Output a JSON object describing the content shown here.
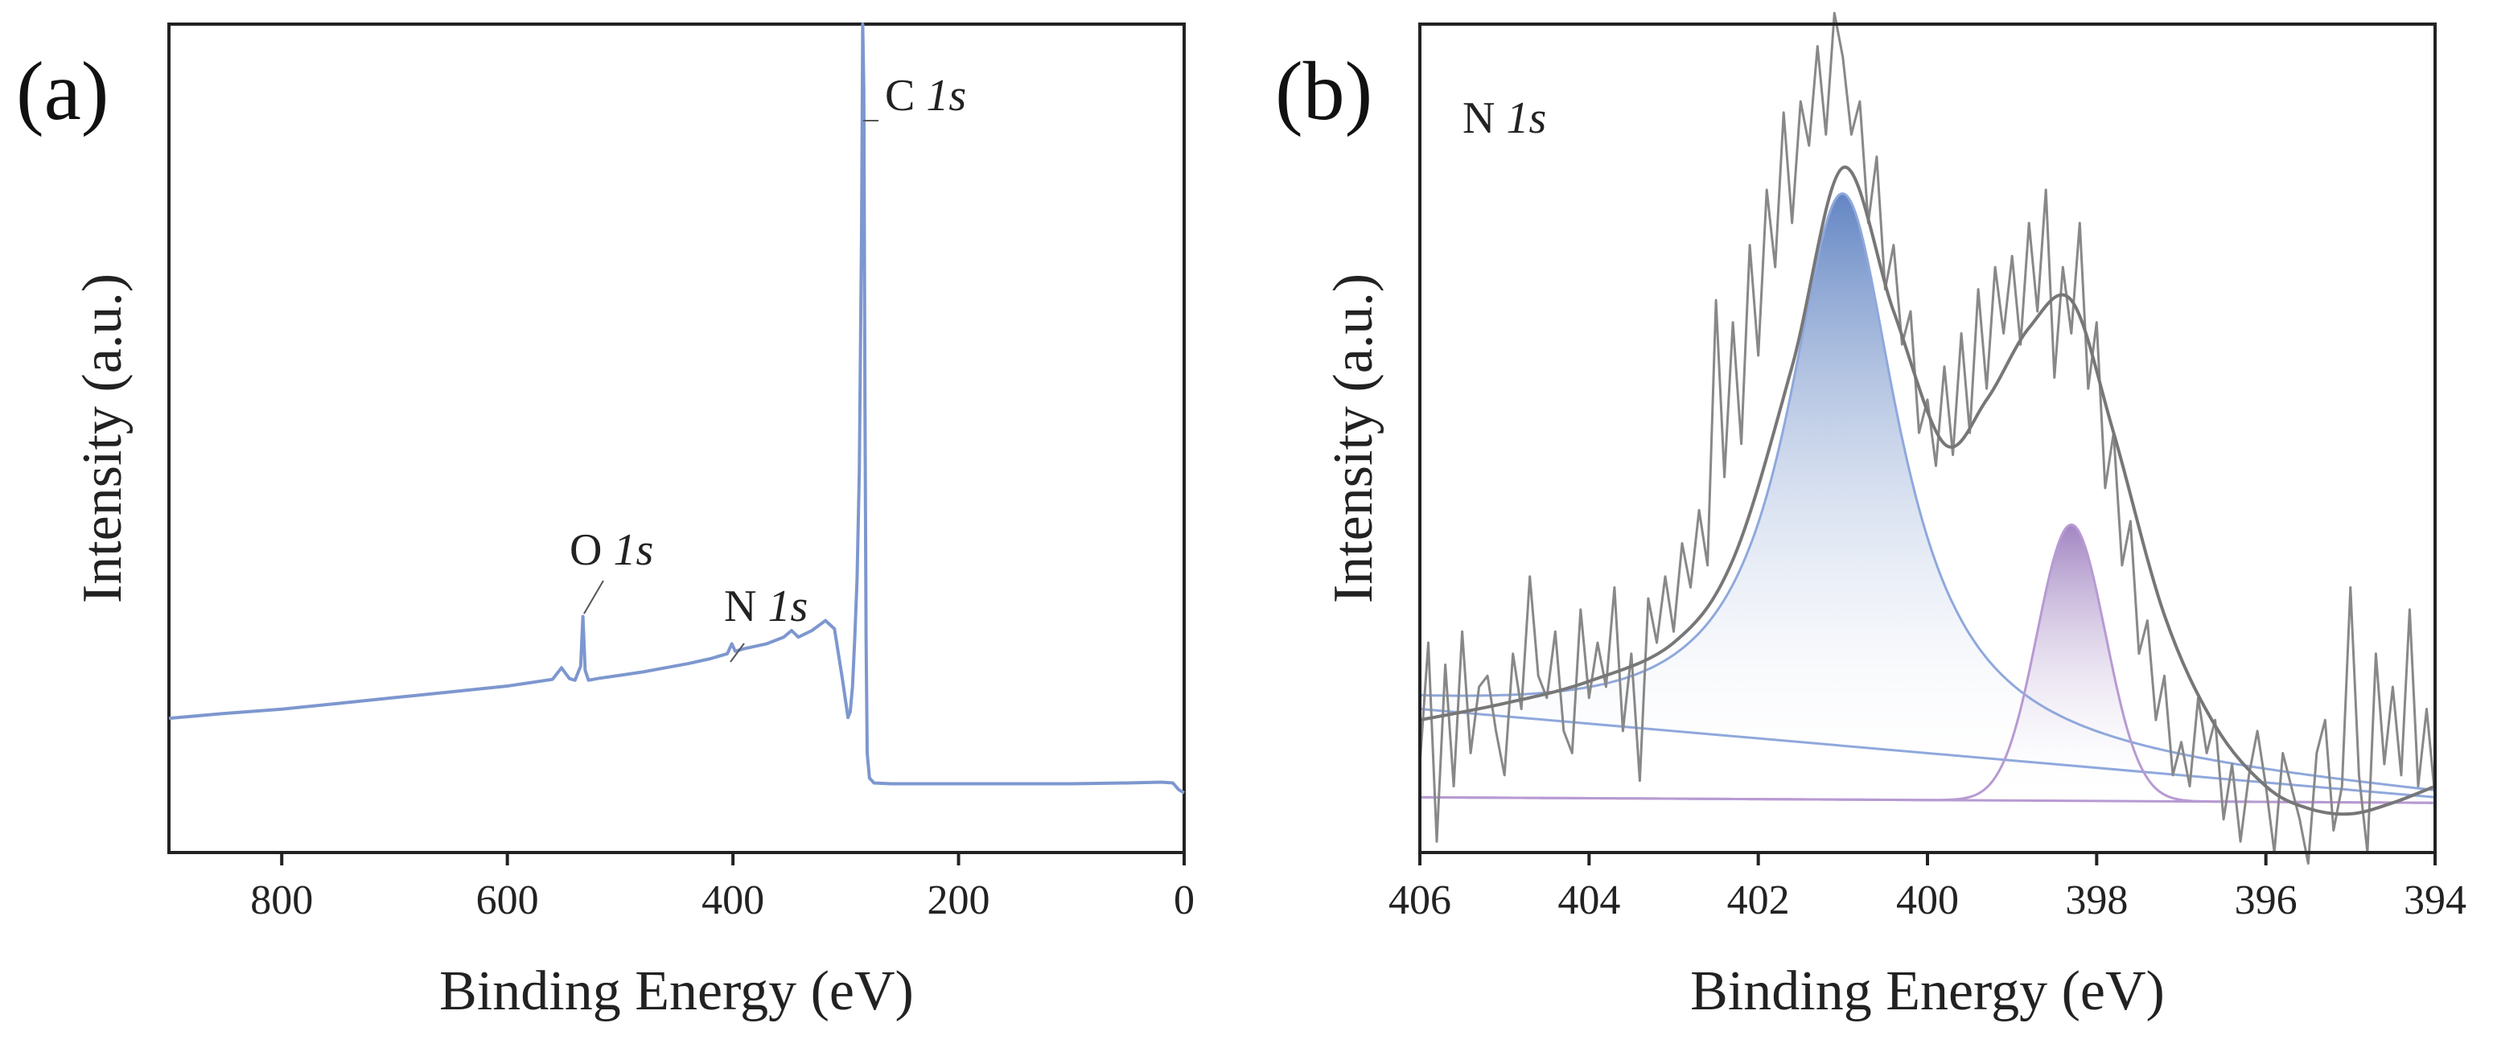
{
  "chart_data": [
    {
      "panel": "(a)",
      "type": "line",
      "title": "",
      "xlabel": "Binding Energy (eV)",
      "ylabel": "Intensity (a.u.)",
      "xlim": [
        900,
        0
      ],
      "ylim": [
        0,
        100
      ],
      "x_ticks": [
        800,
        600,
        400,
        200,
        0
      ],
      "x_tick_labels": [
        "800",
        "600",
        "400",
        "200",
        "0"
      ],
      "y_ticks": [],
      "colors": {
        "survey": "#7d97cf"
      },
      "annotations": [
        {
          "element": "C",
          "orbital": "1s",
          "x": 284.8
        },
        {
          "element": "O",
          "orbital": "1s",
          "x": 532
        },
        {
          "element": "N",
          "orbital": "1s",
          "x": 400
        }
      ],
      "series": [
        {
          "name": "survey",
          "x": [
            900,
            850,
            800,
            750,
            700,
            650,
            600,
            580,
            560,
            552,
            545,
            540,
            535,
            533,
            531,
            528,
            520,
            500,
            480,
            460,
            440,
            420,
            405,
            401,
            398,
            390,
            370,
            355,
            348,
            342,
            330,
            318,
            310,
            303,
            298,
            296,
            294,
            292,
            290,
            288,
            286,
            285,
            284,
            283,
            282,
            281,
            279,
            275,
            260,
            240,
            200,
            150,
            100,
            50,
            20,
            10,
            5,
            0
          ],
          "values": [
            16.2,
            16.8,
            17.3,
            18.0,
            18.7,
            19.4,
            20.1,
            20.5,
            20.9,
            22.3,
            21.0,
            20.8,
            22.5,
            28.5,
            22.0,
            20.8,
            21.0,
            21.4,
            21.8,
            22.3,
            22.8,
            23.4,
            24.0,
            25.2,
            24.3,
            24.6,
            25.2,
            26.0,
            26.8,
            26.0,
            26.8,
            28.0,
            27.0,
            21.0,
            16.3,
            17.0,
            20.0,
            26.0,
            33.0,
            46.0,
            75.0,
            100.0,
            92.0,
            55.0,
            26.0,
            12.0,
            9.0,
            8.4,
            8.3,
            8.3,
            8.3,
            8.3,
            8.3,
            8.4,
            8.5,
            8.4,
            7.6,
            7.2
          ]
        }
      ]
    },
    {
      "panel": "(b)",
      "type": "line",
      "title": "N 1s",
      "xlabel": "Binding Energy (eV)",
      "ylabel": "Intensity (a.u.)",
      "xlim": [
        406,
        394
      ],
      "ylim": [
        -10,
        140
      ],
      "x_ticks": [
        406,
        404,
        402,
        400,
        398,
        396,
        394
      ],
      "x_tick_labels": [
        "406",
        "404",
        "402",
        "400",
        "398",
        "396",
        "394"
      ],
      "y_ticks": [],
      "colors": {
        "raw": "#888888",
        "envelope": "#777777",
        "peak1": "#5b7fc0",
        "peak1_line": "#8fa8dc",
        "peak2": "#9d7fbf",
        "peak2_line": "#b79ad2"
      },
      "components": [
        {
          "name": "peak-1",
          "center": 401.0,
          "height": 100,
          "fwhm": 1.6,
          "shape": "lorentzian"
        },
        {
          "name": "peak-2",
          "center": 398.3,
          "height": 50,
          "fwhm": 0.95,
          "shape": "gaussian"
        }
      ],
      "baselines": [
        {
          "name": "baseline-1",
          "x": [
            406,
            394
          ],
          "y": [
            16,
            0
          ]
        },
        {
          "name": "baseline-2",
          "x": [
            406,
            394
          ],
          "y": [
            0,
            -1
          ]
        }
      ],
      "envelope": {
        "x": [
          406,
          405,
          404,
          403,
          402.3,
          401.6,
          401.0,
          400.4,
          399.8,
          399.3,
          398.8,
          398.3,
          397.8,
          397.2,
          396.6,
          396,
          395.5,
          395,
          394.5,
          394
        ],
        "values": [
          14,
          17,
          21,
          28,
          43,
          78,
          114,
          88,
          64,
          72,
          85,
          90,
          66,
          33,
          13,
          2,
          -2,
          -3,
          -1,
          2
        ]
      },
      "series": [
        {
          "name": "raw",
          "x": [
            406.0,
            405.9,
            405.8,
            405.7,
            405.6,
            405.5,
            405.4,
            405.3,
            405.2,
            405.1,
            405.0,
            404.9,
            404.8,
            404.7,
            404.6,
            404.5,
            404.4,
            404.3,
            404.2,
            404.1,
            404.0,
            403.9,
            403.8,
            403.7,
            403.6,
            403.5,
            403.4,
            403.3,
            403.2,
            403.1,
            403.0,
            402.9,
            402.8,
            402.7,
            402.6,
            402.5,
            402.4,
            402.3,
            402.2,
            402.1,
            402.0,
            401.9,
            401.8,
            401.7,
            401.6,
            401.5,
            401.4,
            401.3,
            401.2,
            401.1,
            401.0,
            400.9,
            400.8,
            400.7,
            400.6,
            400.5,
            400.4,
            400.3,
            400.2,
            400.1,
            400.0,
            399.9,
            399.8,
            399.7,
            399.6,
            399.5,
            399.4,
            399.3,
            399.2,
            399.1,
            399.0,
            398.9,
            398.8,
            398.7,
            398.6,
            398.5,
            398.4,
            398.3,
            398.2,
            398.1,
            398.0,
            397.9,
            397.8,
            397.7,
            397.6,
            397.5,
            397.4,
            397.3,
            397.2,
            397.1,
            397.0,
            396.9,
            396.8,
            396.7,
            396.6,
            396.5,
            396.4,
            396.3,
            396.2,
            396.1,
            396.0,
            395.9,
            395.8,
            395.7,
            395.6,
            395.5,
            395.4,
            395.3,
            395.2,
            395.1,
            395.0,
            394.9,
            394.8,
            394.7,
            394.6,
            394.5,
            394.4,
            394.3,
            394.2,
            394.1,
            394.0
          ],
          "values": [
            6,
            28,
            -8,
            24,
            2,
            30,
            8,
            20,
            22,
            12,
            4,
            26,
            16,
            40,
            22,
            18,
            30,
            12,
            8,
            34,
            18,
            28,
            20,
            38,
            12,
            26,
            3,
            36,
            28,
            40,
            30,
            46,
            38,
            52,
            42,
            90,
            58,
            86,
            64,
            100,
            80,
            110,
            96,
            124,
            104,
            126,
            118,
            136,
            120,
            142,
            134,
            120,
            126,
            104,
            116,
            92,
            100,
            82,
            88,
            66,
            72,
            60,
            78,
            62,
            84,
            66,
            92,
            74,
            96,
            84,
            98,
            82,
            104,
            88,
            110,
            76,
            96,
            84,
            104,
            74,
            86,
            56,
            66,
            42,
            50,
            26,
            32,
            14,
            22,
            4,
            10,
            2,
            18,
            8,
            14,
            -4,
            6,
            -8,
            4,
            12,
            2,
            -10,
            8,
            2,
            -4,
            -12,
            8,
            14,
            -6,
            2,
            38,
            4,
            -10,
            26,
            6,
            20,
            4,
            34,
            2,
            16,
            0
          ]
        }
      ],
      "annotations": []
    }
  ],
  "annotation_text": {
    "c1s_element": "C",
    "c1s_orbital": "1s",
    "o1s_element": "O",
    "o1s_orbital": "1s",
    "n1s_element": "N",
    "n1s_orbital": "1s",
    "b_title_element": "N",
    "b_title_orbital": "1s"
  }
}
